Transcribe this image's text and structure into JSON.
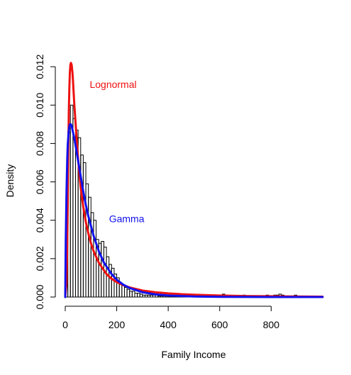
{
  "chart_data": {
    "type": "histogram",
    "title": "",
    "xlabel": "Family Income",
    "ylabel": "Density",
    "xlim": [
      0,
      1000
    ],
    "ylim": [
      0,
      0.0123
    ],
    "xticks": [
      0,
      200,
      400,
      600,
      800
    ],
    "yticks": [
      0.0,
      0.002,
      0.004,
      0.006,
      0.008,
      0.01,
      0.012
    ],
    "ytick_labels": [
      "0.000",
      "0.002",
      "0.004",
      "0.006",
      "0.008",
      "0.010",
      "0.012"
    ],
    "grid": false,
    "histogram": {
      "bin_width": 10,
      "bin_start": 0,
      "densities": [
        0.0031,
        0.0086,
        0.01,
        0.0093,
        0.0087,
        0.0083,
        0.0074,
        0.007,
        0.0059,
        0.0052,
        0.0044,
        0.004,
        0.003,
        0.0028,
        0.0029,
        0.0026,
        0.0021,
        0.0017,
        0.0015,
        0.0012,
        0.001,
        0.0007,
        0.0006,
        0.0005,
        0.0004,
        0.0003,
        0.0003,
        0.0002,
        0.0002,
        0.00015,
        0.0001,
        0.0001,
        0.0001,
        0.0001,
        0.0001,
        0.0001,
        5e-05,
        5e-05,
        5e-05,
        5e-05,
        5e-05,
        5e-05,
        5e-05,
        5e-05,
        5e-05,
        0.00015,
        5e-05,
        5e-05,
        5e-05,
        5e-05,
        5e-05,
        5e-05,
        5e-05,
        5e-05,
        5e-05,
        5e-05,
        5e-05,
        5e-05,
        5e-05,
        5e-05,
        0.0001,
        0.00015,
        0.0001,
        5e-05,
        5e-05,
        5e-05,
        5e-05,
        5e-05,
        5e-05,
        0.0001,
        5e-05,
        5e-05,
        5e-05,
        5e-05,
        5e-05,
        5e-05,
        5e-05,
        5e-05,
        0.0001,
        5e-05,
        5e-05,
        0.0001,
        0.0001,
        0.00015,
        0.0001,
        5e-05,
        5e-05,
        5e-05,
        5e-05,
        0.0001
      ]
    },
    "series": [
      {
        "name": "Lognormal",
        "color": "#ee1111",
        "x": [
          0,
          5,
          8,
          10,
          12,
          14,
          16,
          18,
          20,
          22,
          25,
          28,
          30,
          32,
          35,
          40,
          45,
          50,
          55,
          60,
          70,
          80,
          90,
          100,
          110,
          120,
          130,
          140,
          150,
          160,
          180,
          200,
          225,
          250,
          300,
          350,
          400,
          450,
          500,
          600,
          700,
          800,
          900,
          1000
        ],
        "y": [
          0.0,
          0.0007,
          0.003,
          0.0052,
          0.0078,
          0.0097,
          0.0109,
          0.0117,
          0.0121,
          0.0122,
          0.0121,
          0.0117,
          0.0113,
          0.0108,
          0.0101,
          0.0091,
          0.0081,
          0.0072,
          0.0064,
          0.0057,
          0.0047,
          0.0039,
          0.0033,
          0.0028,
          0.0024,
          0.0021,
          0.0018,
          0.0016,
          0.0014,
          0.0012,
          0.00095,
          0.00078,
          0.00062,
          0.0005,
          0.00034,
          0.00025,
          0.00019,
          0.00015,
          0.00012,
          8e-05,
          5e-05,
          4e-05,
          3e-05,
          2e-05
        ]
      },
      {
        "name": "Gamma",
        "color": "#1111ee",
        "x": [
          0,
          2,
          5,
          8,
          10,
          14,
          18,
          22,
          25,
          30,
          35,
          40,
          50,
          60,
          70,
          80,
          90,
          100,
          110,
          120,
          130,
          140,
          150,
          160,
          180,
          200,
          225,
          250,
          300,
          350,
          400,
          500,
          600,
          700,
          800,
          1000
        ],
        "y": [
          0.0,
          0.0029,
          0.0055,
          0.0073,
          0.008,
          0.0087,
          0.009,
          0.009,
          0.0089,
          0.0086,
          0.0083,
          0.0079,
          0.0071,
          0.0063,
          0.0055,
          0.0048,
          0.0042,
          0.0037,
          0.0032,
          0.0028,
          0.0024,
          0.0021,
          0.0018,
          0.0016,
          0.0012,
          0.0009,
          0.00065,
          0.00047,
          0.00025,
          0.00014,
          8e-05,
          3e-05,
          1e-05,
          5e-06,
          2e-06,
          0.0
        ]
      }
    ],
    "annotations": [
      {
        "text": "Lognormal",
        "x": 95,
        "y": 0.0109,
        "color": "#ee1111"
      },
      {
        "text": "Gamma",
        "x": 170,
        "y": 0.0039,
        "color": "#1111ee"
      }
    ]
  }
}
